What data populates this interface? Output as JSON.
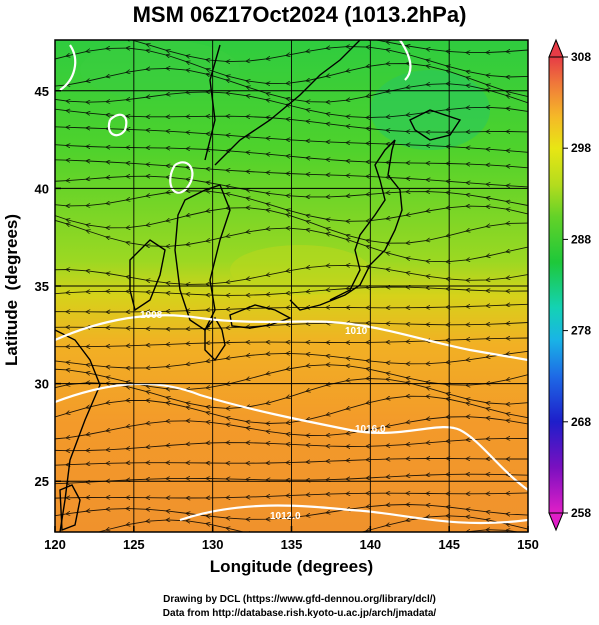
{
  "title": "MSM 06Z17Oct2024 (1013.2hPa)",
  "xlabel": "Longitude (degrees)",
  "ylabel": "Latitude  (degrees)",
  "credit_line1": "Drawing by DCL (https://www.gfd-dennou.org/library/dcl/)",
  "credit_line2": "Data from http://database.rish.kyoto-u.ac.jp/arch/jmadata/",
  "chart_data": {
    "type": "map",
    "field": "temperature with surface streamlines and isobars",
    "xlim": [
      120,
      150
    ],
    "ylim": [
      22.4,
      47.6
    ],
    "x_ticks": [
      120,
      125,
      130,
      135,
      140,
      145,
      150
    ],
    "y_ticks": [
      25,
      30,
      35,
      40,
      45
    ],
    "colorbar": {
      "min": 258,
      "max": 308,
      "ticks": [
        258,
        268,
        278,
        288,
        298,
        308
      ],
      "colors": [
        "#e01fc7",
        "#8010c0",
        "#2020c8",
        "#1e64e6",
        "#19b4e6",
        "#14d2b4",
        "#19c83c",
        "#50d228",
        "#a0dc1e",
        "#e6e614",
        "#f0c81e",
        "#f59628",
        "#f0643c",
        "#e63c46"
      ]
    },
    "isobar_labels": [
      "1008",
      "1010",
      "1016.0",
      "1012.0"
    ]
  }
}
